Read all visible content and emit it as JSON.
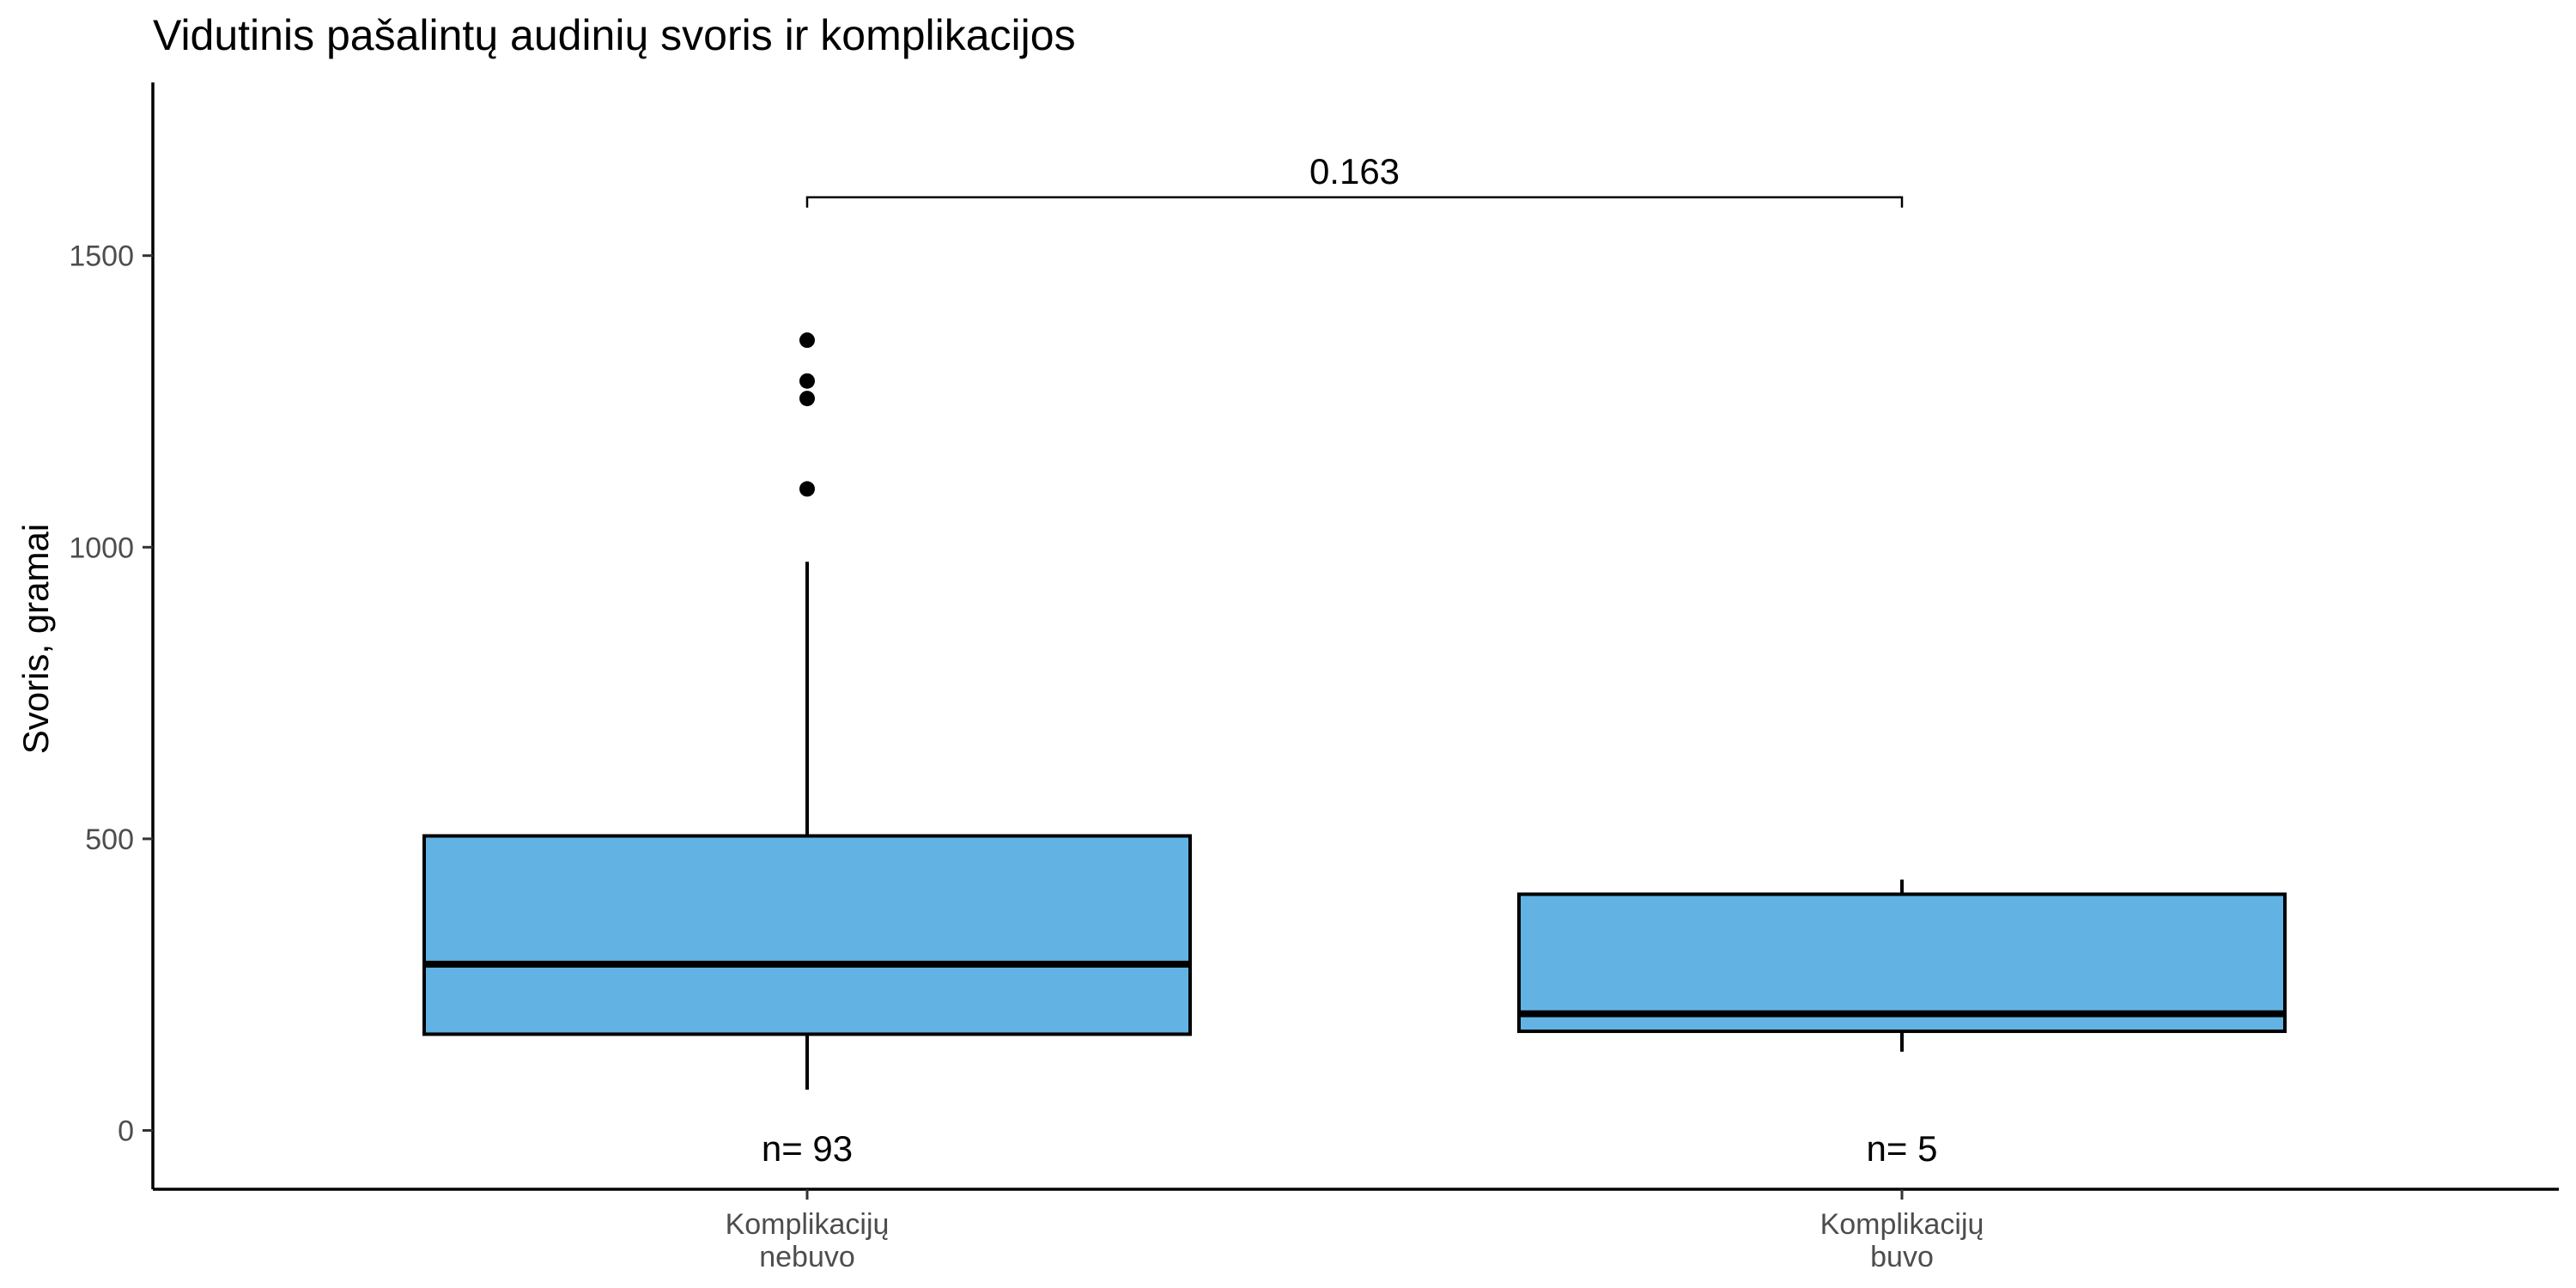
{
  "chart_data": {
    "type": "boxplot",
    "title": "Vidutinis pašalintų audinių svoris ir komplikacijos",
    "xlabel": "",
    "ylabel": "Svoris, gramai",
    "ylim": [
      -100,
      1800
    ],
    "yticks": [
      0,
      500,
      1000,
      1500
    ],
    "categories": [
      [
        "Komplikacijų",
        "nebuvo"
      ],
      [
        "Komplikacijų",
        "buvo"
      ]
    ],
    "boxes": [
      {
        "whisker_low": 70,
        "q1": 165,
        "median": 285,
        "q3": 505,
        "whisker_high": 975,
        "outliers": [
          1100,
          1255,
          1285,
          1355
        ],
        "n_label": "n= 93"
      },
      {
        "whisker_low": 135,
        "q1": 170,
        "median": 200,
        "q3": 405,
        "whisker_high": 430,
        "outliers": [],
        "n_label": "n= 5"
      }
    ],
    "comparison": {
      "from": 0,
      "to": 1,
      "label": "0.163",
      "y": 1600
    },
    "fill_color": "#62b3e4",
    "grid": false,
    "legend": "none"
  }
}
